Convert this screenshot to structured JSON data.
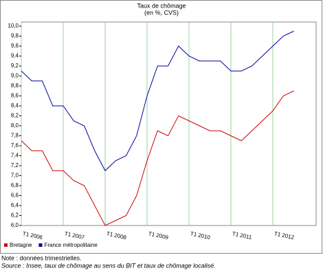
{
  "chart_data": {
    "type": "line",
    "title": "Taux de chômage",
    "subtitle": "(en %, CVS)",
    "categories": [
      "T1 2006",
      null,
      null,
      null,
      "T1 2007",
      null,
      null,
      null,
      "T1 2008",
      null,
      null,
      null,
      "T1 2009",
      null,
      null,
      null,
      "T1 2010",
      null,
      null,
      null,
      "T1 2011",
      null,
      null,
      null,
      "T1 2012",
      null,
      null
    ],
    "series": [
      {
        "name": "Bretagne",
        "color": "#cc0000",
        "values": [
          7.7,
          7.5,
          7.5,
          7.1,
          7.1,
          6.9,
          6.8,
          6.4,
          6.0,
          6.1,
          6.2,
          6.6,
          7.3,
          7.9,
          7.8,
          8.2,
          8.1,
          8.0,
          7.9,
          7.9,
          7.8,
          7.7,
          7.9,
          8.1,
          8.3,
          8.6,
          8.7
        ]
      },
      {
        "name": "France métropolitaine",
        "color": "#0000a0",
        "values": [
          9.1,
          8.9,
          8.9,
          8.4,
          8.4,
          8.1,
          8.0,
          7.5,
          7.1,
          7.3,
          7.4,
          7.8,
          8.6,
          9.2,
          9.2,
          9.6,
          9.4,
          9.3,
          9.3,
          9.3,
          9.1,
          9.1,
          9.2,
          9.4,
          9.6,
          9.8,
          9.9
        ]
      }
    ],
    "ylim": [
      6.0,
      10.0
    ],
    "yticks": [
      {
        "value": 6.0,
        "label": "6,0"
      },
      {
        "value": 6.2,
        "label": "6,2"
      },
      {
        "value": 6.4,
        "label": "6,4"
      },
      {
        "value": 6.6,
        "label": "6,6"
      },
      {
        "value": 6.8,
        "label": "6,8"
      },
      {
        "value": 7.0,
        "label": "7,0"
      },
      {
        "value": 7.2,
        "label": "7,2"
      },
      {
        "value": 7.4,
        "label": "7,4"
      },
      {
        "value": 7.6,
        "label": "7,6"
      },
      {
        "value": 7.8,
        "label": "7,8"
      },
      {
        "value": 8.0,
        "label": "8,0"
      },
      {
        "value": 8.2,
        "label": "8,2"
      },
      {
        "value": 8.4,
        "label": "8,4"
      },
      {
        "value": 8.6,
        "label": "8,6"
      },
      {
        "value": 8.8,
        "label": "8,8"
      },
      {
        "value": 9.0,
        "label": "9,0"
      },
      {
        "value": 9.2,
        "label": "9,2"
      },
      {
        "value": 9.4,
        "label": "9,4"
      },
      {
        "value": 9.6,
        "label": "9,6"
      },
      {
        "value": 9.8,
        "label": "9,8"
      },
      {
        "value": 10.0,
        "label": "10,0"
      }
    ],
    "notes": [
      "Note : données trimestrielles.",
      "Source : Insee, taux de chômage au sens du BIT et taux de chômage localisé."
    ]
  }
}
